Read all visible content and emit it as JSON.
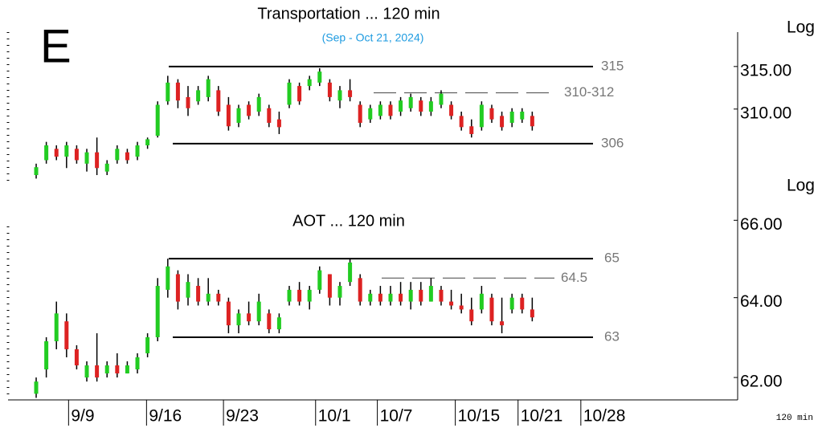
{
  "panel_letter": "E",
  "footer": "120 min",
  "chart_data": [
    {
      "type": "candlestick",
      "title": "Transportation ... 120 min",
      "subtitle": "(Sep - Oct 21, 2024)",
      "axis_label": "Log",
      "log_scale": true,
      "up_color": "#22cc22",
      "down_color": "#dd2222",
      "xlim": [
        -2.78,
        69.29
      ],
      "ylim": [
        300.4,
        319.1
      ],
      "yticks": [
        {
          "value": 315,
          "label": "315.00"
        },
        {
          "value": 310,
          "label": "310.00"
        }
      ],
      "levels": [
        {
          "value": 315,
          "style": "solid"
        },
        {
          "value": 311.9,
          "label": "310-312",
          "style": "dashed"
        },
        {
          "value": 306,
          "style": "solid"
        }
      ],
      "x": [
        0,
        1,
        2,
        3,
        4,
        5,
        6,
        7,
        8,
        9,
        10,
        11,
        12,
        13,
        14,
        15,
        16,
        17,
        18,
        19,
        20,
        21,
        22,
        23,
        24,
        25,
        26,
        27,
        28,
        29,
        30,
        31,
        32,
        33,
        34,
        35,
        36,
        37,
        38,
        39,
        40,
        41,
        42,
        43,
        44,
        45,
        46,
        47,
        48,
        49
      ],
      "open": [
        302.4,
        304.1,
        305.4,
        304.5,
        305.4,
        303.7,
        305.0,
        302.8,
        304.1,
        305.0,
        304.5,
        305.8,
        306.9,
        310.9,
        313.1,
        311.4,
        310.9,
        311.4,
        312.2,
        310.5,
        308.4,
        310.5,
        309.7,
        310.1,
        308.8,
        310.5,
        312.7,
        312.7,
        313.1,
        313.1,
        311.0,
        312.2,
        310.5,
        308.8,
        309.2,
        310.5,
        309.7,
        310.1,
        311.0,
        309.7,
        310.5,
        310.5,
        309.2,
        308.0,
        307.9,
        310.1,
        309.2,
        308.4,
        308.8,
        309.2
      ],
      "high": [
        303.7,
        306.2,
        305.8,
        306.2,
        305.8,
        305.4,
        306.7,
        304.1,
        305.8,
        305.4,
        306.2,
        306.7,
        310.9,
        313.9,
        313.5,
        312.7,
        312.7,
        313.9,
        312.7,
        311.4,
        310.5,
        310.9,
        311.8,
        310.5,
        309.7,
        313.5,
        313.1,
        313.9,
        314.8,
        313.5,
        312.7,
        313.5,
        310.9,
        310.5,
        310.9,
        310.9,
        311.4,
        311.8,
        311.4,
        311.4,
        312.2,
        310.9,
        309.7,
        308.8,
        310.9,
        310.5,
        309.7,
        310.1,
        310.1,
        309.7
      ],
      "low": [
        302.0,
        303.7,
        304.1,
        303.2,
        303.7,
        302.8,
        302.4,
        302.4,
        303.7,
        303.7,
        304.1,
        305.4,
        306.7,
        310.5,
        310.1,
        309.2,
        310.5,
        310.9,
        309.2,
        307.5,
        307.9,
        308.8,
        309.2,
        307.9,
        307.1,
        310.1,
        310.5,
        312.2,
        312.7,
        310.9,
        310.1,
        310.9,
        307.9,
        308.4,
        308.8,
        308.8,
        309.2,
        309.7,
        309.2,
        309.2,
        310.1,
        308.8,
        307.5,
        306.7,
        307.5,
        308.4,
        307.5,
        307.9,
        308.4,
        307.5
      ],
      "close": [
        303.3,
        305.8,
        304.5,
        305.8,
        304.1,
        305.0,
        303.2,
        303.7,
        305.4,
        304.1,
        305.8,
        306.5,
        310.5,
        313.1,
        311.0,
        310.1,
        312.2,
        313.5,
        309.7,
        308.0,
        310.1,
        309.2,
        311.4,
        308.4,
        307.9,
        313.1,
        310.9,
        313.5,
        314.4,
        311.4,
        312.2,
        311.4,
        308.4,
        310.1,
        310.5,
        309.2,
        311.0,
        311.4,
        309.7,
        310.9,
        311.8,
        309.2,
        307.9,
        307.1,
        310.5,
        308.8,
        307.9,
        309.7,
        309.7,
        308.0
      ]
    },
    {
      "type": "candlestick",
      "title": "AOT ... 120 min",
      "axis_label": "Log",
      "log_scale": true,
      "up_color": "#22cc22",
      "down_color": "#dd2222",
      "xlim": [
        -2.78,
        69.29
      ],
      "ylim": [
        61.45,
        66.26
      ],
      "xticks": [
        {
          "value": 3.2,
          "label": "9/9"
        },
        {
          "value": 10.9,
          "label": "9/16"
        },
        {
          "value": 18.5,
          "label": "9/23"
        },
        {
          "value": 27.6,
          "label": "10/1"
        },
        {
          "value": 33.7,
          "label": "10/7"
        },
        {
          "value": 41.4,
          "label": "10/15"
        },
        {
          "value": 47.6,
          "label": "10/21"
        },
        {
          "value": 53.8,
          "label": "10/28"
        }
      ],
      "yticks": [
        {
          "value": 66,
          "label": "66.00"
        },
        {
          "value": 64,
          "label": "64.00"
        },
        {
          "value": 62,
          "label": "62.00"
        }
      ],
      "levels": [
        {
          "value": 65,
          "style": "solid"
        },
        {
          "value": 64.5,
          "style": "dashed"
        },
        {
          "value": 63,
          "style": "solid"
        }
      ],
      "x": [
        0,
        1,
        2,
        3,
        4,
        5,
        6,
        7,
        8,
        9,
        10,
        11,
        12,
        13,
        14,
        15,
        16,
        17,
        18,
        19,
        20,
        21,
        22,
        23,
        24,
        25,
        26,
        27,
        28,
        29,
        30,
        31,
        32,
        33,
        34,
        35,
        36,
        37,
        38,
        39,
        40,
        41,
        42,
        43,
        44,
        45,
        46,
        47,
        48,
        49
      ],
      "open": [
        61.6,
        62.2,
        62.9,
        63.4,
        62.7,
        62.0,
        62.3,
        62.1,
        62.3,
        62.1,
        62.2,
        62.6,
        63.0,
        64.2,
        64.6,
        64.0,
        64.3,
        63.9,
        64.1,
        63.9,
        63.3,
        63.6,
        63.4,
        63.6,
        63.2,
        63.9,
        64.2,
        63.9,
        64.2,
        64.6,
        64.0,
        64.4,
        64.5,
        63.9,
        64.1,
        63.9,
        64.1,
        63.9,
        64.2,
        63.9,
        64.2,
        63.9,
        63.8,
        63.7,
        63.7,
        64.0,
        63.4,
        63.7,
        64.0,
        63.7
      ],
      "high": [
        62.0,
        63.0,
        63.9,
        63.6,
        62.8,
        62.4,
        63.1,
        62.4,
        62.6,
        62.4,
        62.6,
        63.1,
        64.5,
        65.0,
        64.7,
        64.6,
        64.5,
        64.5,
        64.2,
        64.0,
        63.7,
        63.9,
        64.1,
        63.7,
        63.6,
        64.3,
        64.4,
        64.3,
        64.8,
        64.6,
        64.4,
        65.0,
        64.6,
        64.2,
        64.3,
        64.3,
        64.4,
        64.4,
        64.4,
        64.5,
        64.3,
        64.2,
        64.1,
        64.0,
        64.3,
        64.1,
        64.0,
        64.1,
        64.1,
        64.0
      ],
      "low": [
        61.5,
        62.0,
        62.7,
        62.5,
        62.2,
        61.9,
        61.9,
        62.0,
        62.0,
        62.1,
        62.1,
        62.5,
        62.9,
        64.0,
        63.7,
        63.8,
        63.8,
        63.8,
        63.8,
        63.1,
        63.1,
        63.3,
        63.3,
        63.1,
        63.1,
        63.8,
        63.8,
        63.7,
        64.1,
        63.8,
        63.8,
        64.3,
        63.8,
        63.8,
        63.8,
        63.8,
        63.8,
        63.7,
        63.8,
        63.9,
        63.8,
        63.7,
        63.6,
        63.3,
        63.6,
        63.3,
        63.1,
        63.6,
        63.6,
        63.4
      ],
      "close": [
        61.9,
        62.9,
        63.6,
        62.7,
        62.3,
        62.3,
        62.0,
        62.3,
        62.1,
        62.3,
        62.5,
        63.0,
        64.3,
        64.8,
        63.9,
        64.4,
        63.9,
        64.1,
        63.9,
        63.3,
        63.6,
        63.4,
        63.9,
        63.2,
        63.5,
        64.2,
        63.9,
        64.2,
        64.7,
        64.0,
        64.3,
        64.9,
        63.9,
        64.1,
        63.9,
        64.1,
        63.9,
        64.2,
        63.9,
        64.3,
        63.9,
        63.8,
        63.7,
        63.4,
        64.1,
        63.4,
        63.3,
        64.0,
        63.7,
        63.5
      ]
    }
  ]
}
